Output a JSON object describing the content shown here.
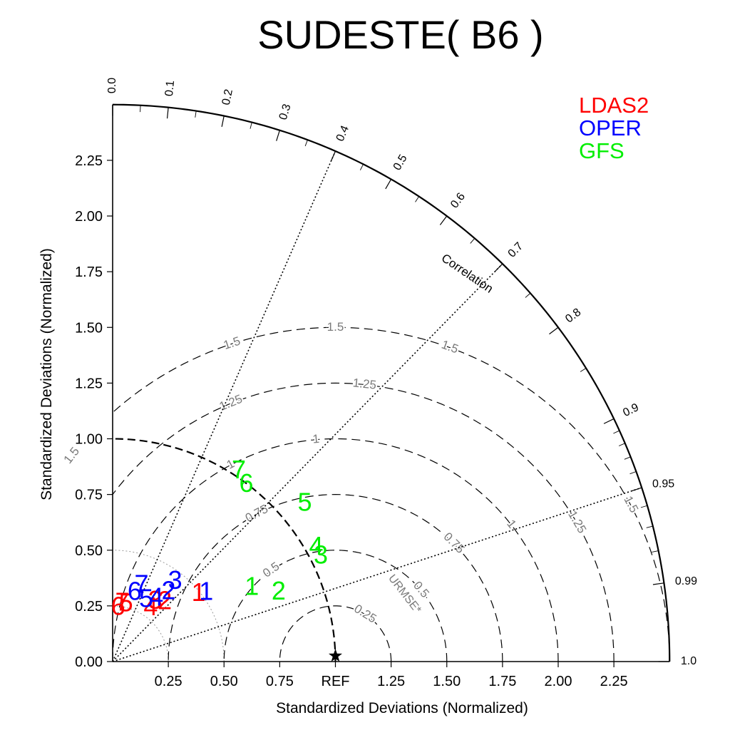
{
  "chart_data": {
    "type": "scatter",
    "subtype": "taylor-diagram",
    "title": "SUDESTE( B6 )",
    "xlabel": "Standardized Deviations (Normalized)",
    "ylabel": "Standardized Deviations (Normalized)",
    "corr_label": "Correlation",
    "rmse_label": "URMSE*",
    "ref_label": "REF",
    "max_std": 2.5,
    "grid": true,
    "legend_position": "top-right",
    "x_ticks": [
      {
        "v": 0.25,
        "label": "0.25"
      },
      {
        "v": 0.5,
        "label": "0.50"
      },
      {
        "v": 0.75,
        "label": "0.75"
      },
      {
        "v": 1.0,
        "label": "REF"
      },
      {
        "v": 1.25,
        "label": "1.25"
      },
      {
        "v": 1.5,
        "label": "1.50"
      },
      {
        "v": 1.75,
        "label": "1.75"
      },
      {
        "v": 2.0,
        "label": "2.00"
      },
      {
        "v": 2.25,
        "label": "2.25"
      }
    ],
    "y_ticks": [
      {
        "v": 0.0,
        "label": "0.00"
      },
      {
        "v": 0.25,
        "label": "0.25"
      },
      {
        "v": 0.5,
        "label": "0.50"
      },
      {
        "v": 0.75,
        "label": "0.75"
      },
      {
        "v": 1.0,
        "label": "1.00"
      },
      {
        "v": 1.25,
        "label": "1.25"
      },
      {
        "v": 1.5,
        "label": "1.50"
      },
      {
        "v": 1.75,
        "label": "1.75"
      },
      {
        "v": 2.0,
        "label": "2.00"
      },
      {
        "v": 2.25,
        "label": "2.25"
      }
    ],
    "corr_ticks": [
      {
        "v": 0.0,
        "label": "0.0"
      },
      {
        "v": 0.1,
        "label": "0.1"
      },
      {
        "v": 0.2,
        "label": "0.2"
      },
      {
        "v": 0.3,
        "label": "0.3"
      },
      {
        "v": 0.4,
        "label": "0.4"
      },
      {
        "v": 0.5,
        "label": "0.5"
      },
      {
        "v": 0.6,
        "label": "0.6"
      },
      {
        "v": 0.7,
        "label": "0.7"
      },
      {
        "v": 0.8,
        "label": "0.8"
      },
      {
        "v": 0.9,
        "label": "0.9"
      },
      {
        "v": 0.95,
        "label": "0.95"
      },
      {
        "v": 0.99,
        "label": "0.99"
      },
      {
        "v": 1.0,
        "label": "1.0"
      }
    ],
    "corr_minor_ticks": [
      0.05,
      0.15,
      0.25,
      0.35,
      0.45,
      0.55,
      0.65,
      0.75,
      0.85,
      0.91,
      0.92,
      0.93,
      0.94,
      0.96,
      0.97,
      0.98
    ],
    "corr_rays": [
      0.4,
      0.7,
      0.95
    ],
    "rmse_arcs": [
      {
        "v": 0.25,
        "label": "0.25"
      },
      {
        "v": 0.5,
        "label": "0.5"
      },
      {
        "v": 0.75,
        "label": "0.75"
      },
      {
        "v": 1.0,
        "label": "1"
      },
      {
        "v": 1.25,
        "label": "1.25"
      },
      {
        "v": 1.5,
        "label": "1.5"
      }
    ],
    "series": [
      {
        "name": "LDAS2",
        "color": "#ff0000",
        "points": [
          {
            "label": "1",
            "std": 0.495,
            "corr": 0.78
          },
          {
            "label": "2",
            "std": 0.36,
            "corr": 0.65
          },
          {
            "label": "3",
            "std": 0.335,
            "corr": 0.57
          },
          {
            "label": "4",
            "std": 0.3,
            "corr": 0.57
          },
          {
            "label": "5",
            "std": 0.27,
            "corr": 0.22
          },
          {
            "label": "6",
            "std": 0.25,
            "corr": 0.1
          },
          {
            "label": "7",
            "std": 0.27,
            "corr": 0.16
          }
        ]
      },
      {
        "name": "OPER",
        "color": "#0000ff",
        "points": [
          {
            "label": "1",
            "std": 0.525,
            "corr": 0.8
          },
          {
            "label": "2",
            "std": 0.405,
            "corr": 0.62
          },
          {
            "label": "3",
            "std": 0.46,
            "corr": 0.61
          },
          {
            "label": "4",
            "std": 0.35,
            "corr": 0.56
          },
          {
            "label": "5",
            "std": 0.32,
            "corr": 0.47
          },
          {
            "label": "6",
            "std": 0.33,
            "corr": 0.3
          },
          {
            "label": "7",
            "std": 0.37,
            "corr": 0.35
          }
        ]
      },
      {
        "name": "GFS",
        "color": "#00ee00",
        "points": [
          {
            "label": "1",
            "std": 0.71,
            "corr": 0.88
          },
          {
            "label": "2",
            "std": 0.81,
            "corr": 0.92
          },
          {
            "label": "3",
            "std": 1.05,
            "corr": 0.89
          },
          {
            "label": "4",
            "std": 1.05,
            "corr": 0.87
          },
          {
            "label": "5",
            "std": 1.12,
            "corr": 0.77
          },
          {
            "label": "6",
            "std": 1.0,
            "corr": 0.6
          },
          {
            "label": "7",
            "std": 1.03,
            "corr": 0.55
          }
        ]
      }
    ]
  }
}
